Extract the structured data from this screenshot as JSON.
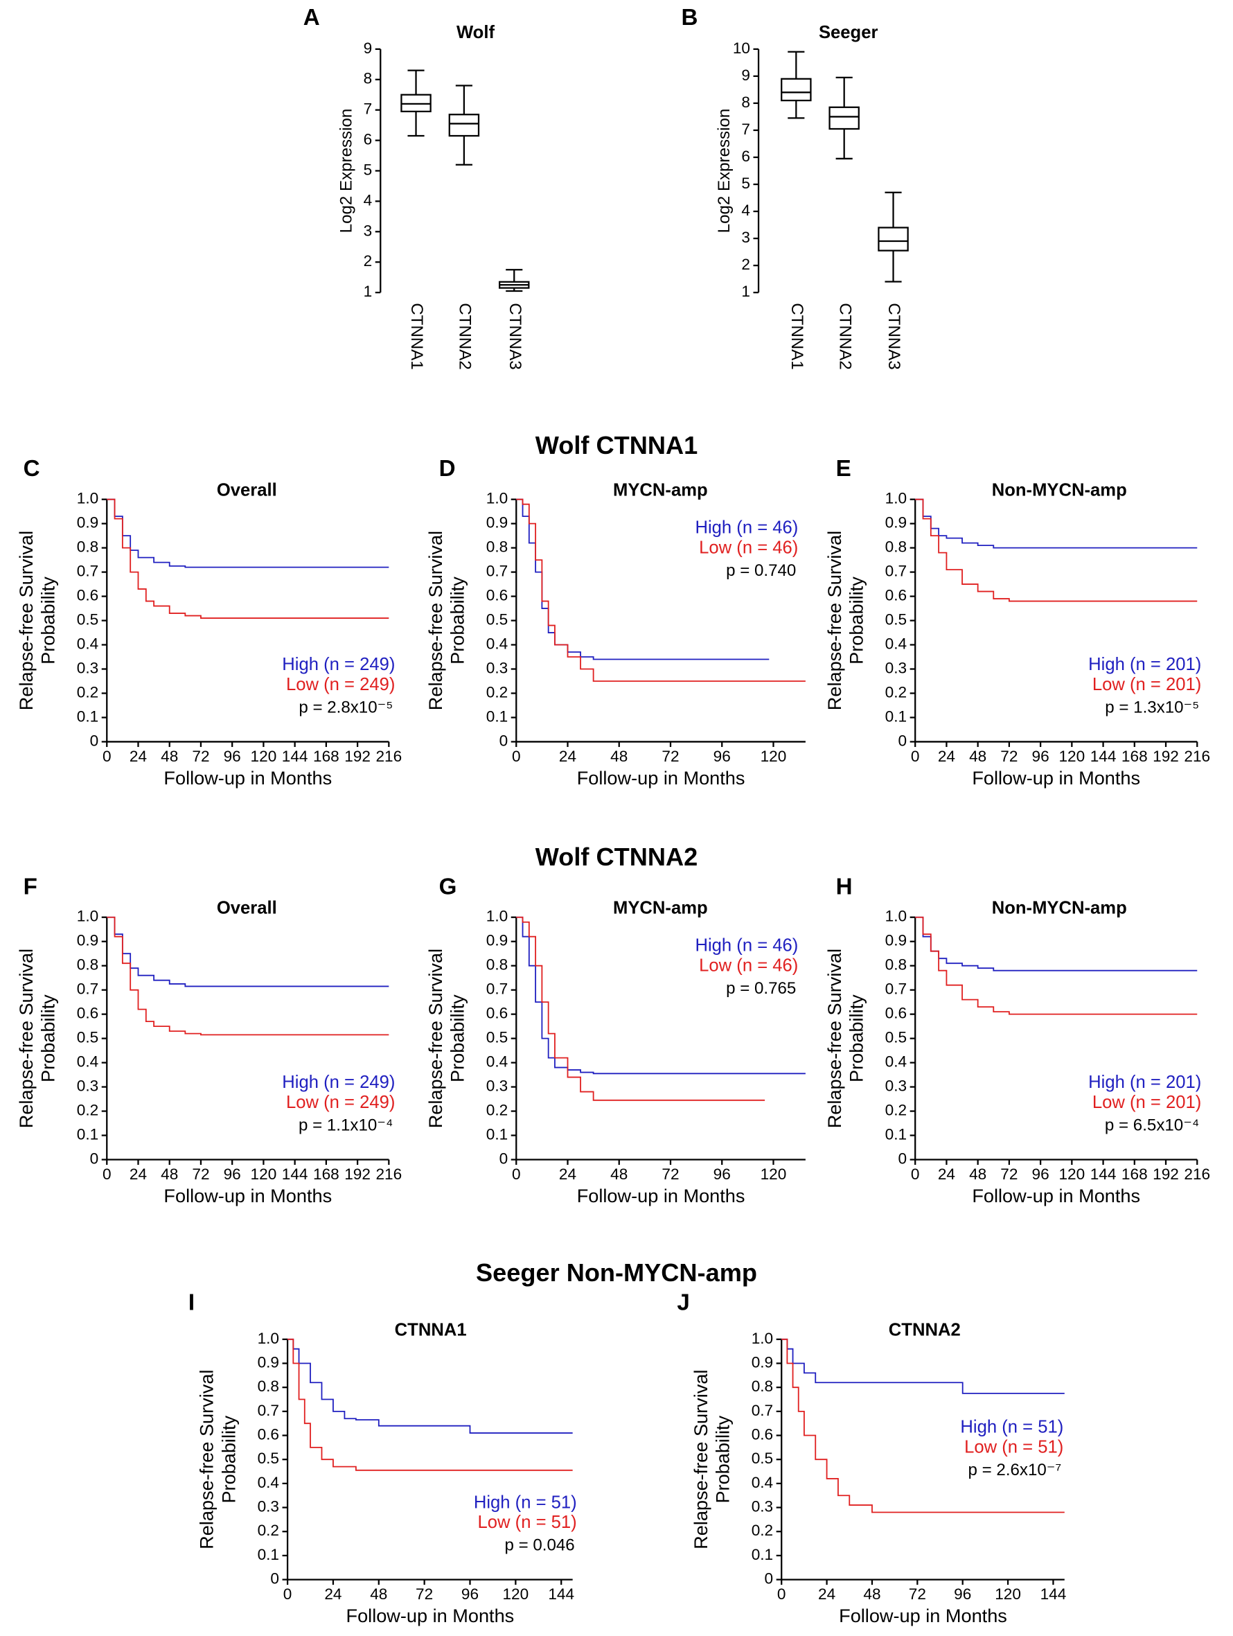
{
  "headings": [
    "Wolf CTNNA1",
    "Wolf CTNNA2",
    "Seeger Non-MYCN-amp"
  ],
  "chart_data": [
    {
      "type": "box",
      "panel": "A",
      "title": "Wolf",
      "ylabel": "Log2 Expression",
      "categories": [
        "CTNNA1",
        "CTNNA2",
        "CTNNA3"
      ],
      "min": [
        6.15,
        5.2,
        1.05
      ],
      "q1": [
        6.95,
        6.15,
        1.15
      ],
      "median": [
        7.2,
        6.55,
        1.25
      ],
      "q3": [
        7.5,
        6.85,
        1.35
      ],
      "max": [
        8.3,
        7.8,
        1.75
      ],
      "ylim": [
        1,
        9
      ],
      "yticks": [
        1,
        2,
        3,
        4,
        5,
        6,
        7,
        8,
        9
      ],
      "color": "#000000"
    },
    {
      "type": "box",
      "panel": "B",
      "title": "Seeger",
      "ylabel": "Log2 Expression",
      "categories": [
        "CTNNA1",
        "CTNNA2",
        "CTNNA3"
      ],
      "min": [
        7.45,
        5.95,
        1.4
      ],
      "q1": [
        8.1,
        7.05,
        2.55
      ],
      "median": [
        8.4,
        7.5,
        2.9
      ],
      "q3": [
        8.9,
        7.85,
        3.4
      ],
      "max": [
        9.9,
        8.95,
        4.7
      ],
      "ylim": [
        1,
        10
      ],
      "yticks": [
        1,
        2,
        3,
        4,
        5,
        6,
        7,
        8,
        9,
        10
      ],
      "color": "#000000"
    },
    {
      "type": "step",
      "panel": "C",
      "title": "Overall",
      "xlabel": "Follow-up in Months",
      "ylabel": [
        "Relapse-free Survival",
        "Probability"
      ],
      "annotation": "p = 2.8x10⁻⁵",
      "legend": "lower right",
      "xlim": [
        0,
        216
      ],
      "xticks": [
        0,
        24,
        48,
        72,
        96,
        120,
        144,
        168,
        192,
        216
      ],
      "ylim": [
        0,
        1
      ],
      "yticks": [
        0,
        0.1,
        0.2,
        0.3,
        0.4,
        0.5,
        0.6,
        0.7,
        0.8,
        0.9,
        {
          "value": 1,
          "label": "1.0"
        }
      ],
      "series": [
        {
          "name": "High (n = 249)",
          "color": "#2020c0",
          "x": [
            0,
            6,
            12,
            18,
            24,
            36,
            48,
            60,
            216
          ],
          "values": [
            1,
            0.93,
            0.85,
            0.79,
            0.76,
            0.74,
            0.725,
            0.72,
            0.72
          ]
        },
        {
          "name": "Low (n = 249)",
          "color": "#e02020",
          "x": [
            0,
            6,
            12,
            18,
            24,
            30,
            36,
            48,
            60,
            72,
            216
          ],
          "values": [
            1,
            0.92,
            0.8,
            0.7,
            0.63,
            0.58,
            0.56,
            0.53,
            0.52,
            0.51,
            0.51
          ]
        }
      ]
    },
    {
      "type": "step",
      "panel": "D",
      "title": "MYCN-amp",
      "xlabel": "Follow-up in Months",
      "ylabel": [
        "Relapse-free Survival",
        "Probability"
      ],
      "annotation": "p = 0.740",
      "legend": "upper right",
      "xlim": [
        0,
        135
      ],
      "xticks": [
        0,
        24,
        48,
        72,
        96,
        120
      ],
      "ylim": [
        0,
        1
      ],
      "yticks": [
        0,
        0.1,
        0.2,
        0.3,
        0.4,
        0.5,
        0.6,
        0.7,
        0.8,
        0.9,
        {
          "value": 1,
          "label": "1.0"
        }
      ],
      "series": [
        {
          "name": "High (n = 46)",
          "color": "#2020c0",
          "x": [
            0,
            3,
            6,
            9,
            12,
            15,
            18,
            24,
            30,
            36,
            118
          ],
          "values": [
            1,
            0.93,
            0.82,
            0.7,
            0.55,
            0.45,
            0.4,
            0.37,
            0.35,
            0.34,
            0.34
          ]
        },
        {
          "name": "Low (n = 46)",
          "color": "#e02020",
          "x": [
            0,
            3,
            6,
            9,
            12,
            15,
            18,
            24,
            30,
            36,
            135
          ],
          "values": [
            1,
            0.98,
            0.9,
            0.75,
            0.58,
            0.48,
            0.4,
            0.35,
            0.3,
            0.25,
            0.25
          ]
        }
      ]
    },
    {
      "type": "step",
      "panel": "E",
      "title": "Non-MYCN-amp",
      "xlabel": "Follow-up in Months",
      "ylabel": [
        "Relapse-free Survival",
        "Probability"
      ],
      "annotation": "p = 1.3x10⁻⁵",
      "legend": "lower right",
      "xlim": [
        0,
        216
      ],
      "xticks": [
        0,
        24,
        48,
        72,
        96,
        120,
        144,
        168,
        192,
        216
      ],
      "ylim": [
        0,
        1
      ],
      "yticks": [
        0,
        0.1,
        0.2,
        0.3,
        0.4,
        0.5,
        0.6,
        0.7,
        0.8,
        0.9,
        {
          "value": 1,
          "label": "1.0"
        }
      ],
      "series": [
        {
          "name": "High (n = 201)",
          "color": "#2020c0",
          "x": [
            0,
            6,
            12,
            18,
            24,
            36,
            48,
            60,
            216
          ],
          "values": [
            1,
            0.93,
            0.88,
            0.85,
            0.84,
            0.82,
            0.81,
            0.8,
            0.8
          ]
        },
        {
          "name": "Low (n = 201)",
          "color": "#e02020",
          "x": [
            0,
            6,
            12,
            18,
            24,
            36,
            48,
            60,
            72,
            216
          ],
          "values": [
            1,
            0.92,
            0.85,
            0.78,
            0.71,
            0.65,
            0.62,
            0.59,
            0.58,
            0.58
          ]
        }
      ]
    },
    {
      "type": "step",
      "panel": "F",
      "title": "Overall",
      "xlabel": "Follow-up in Months",
      "ylabel": [
        "Relapse-free Survival",
        "Probability"
      ],
      "annotation": "p = 1.1x10⁻⁴",
      "legend": "lower right",
      "xlim": [
        0,
        216
      ],
      "xticks": [
        0,
        24,
        48,
        72,
        96,
        120,
        144,
        168,
        192,
        216
      ],
      "ylim": [
        0,
        1
      ],
      "yticks": [
        0,
        0.1,
        0.2,
        0.3,
        0.4,
        0.5,
        0.6,
        0.7,
        0.8,
        0.9,
        {
          "value": 1,
          "label": "1.0"
        }
      ],
      "series": [
        {
          "name": "High (n = 249)",
          "color": "#2020c0",
          "x": [
            0,
            6,
            12,
            18,
            24,
            36,
            48,
            60,
            216
          ],
          "values": [
            1,
            0.93,
            0.85,
            0.79,
            0.76,
            0.74,
            0.725,
            0.715,
            0.715
          ]
        },
        {
          "name": "Low (n = 249)",
          "color": "#e02020",
          "x": [
            0,
            6,
            12,
            18,
            24,
            30,
            36,
            48,
            60,
            72,
            216
          ],
          "values": [
            1,
            0.92,
            0.81,
            0.7,
            0.62,
            0.57,
            0.55,
            0.53,
            0.52,
            0.515,
            0.515
          ]
        }
      ]
    },
    {
      "type": "step",
      "panel": "G",
      "title": "MYCN-amp",
      "xlabel": "Follow-up in Months",
      "ylabel": [
        "Relapse-free Survival",
        "Probability"
      ],
      "annotation": "p = 0.765",
      "legend": "upper right",
      "xlim": [
        0,
        135
      ],
      "xticks": [
        0,
        24,
        48,
        72,
        96,
        120
      ],
      "ylim": [
        0,
        1
      ],
      "yticks": [
        0,
        0.1,
        0.2,
        0.3,
        0.4,
        0.5,
        0.6,
        0.7,
        0.8,
        0.9,
        {
          "value": 1,
          "label": "1.0"
        }
      ],
      "series": [
        {
          "name": "High (n = 46)",
          "color": "#2020c0",
          "x": [
            0,
            3,
            6,
            9,
            12,
            15,
            18,
            24,
            30,
            36,
            135
          ],
          "values": [
            1,
            0.92,
            0.8,
            0.65,
            0.5,
            0.42,
            0.38,
            0.37,
            0.36,
            0.355,
            0.355
          ]
        },
        {
          "name": "Low (n = 46)",
          "color": "#e02020",
          "x": [
            0,
            3,
            6,
            9,
            12,
            15,
            18,
            24,
            30,
            36,
            116
          ],
          "values": [
            1,
            0.98,
            0.92,
            0.8,
            0.65,
            0.52,
            0.42,
            0.34,
            0.28,
            0.245,
            0.245
          ]
        }
      ]
    },
    {
      "type": "step",
      "panel": "H",
      "title": "Non-MYCN-amp",
      "xlabel": "Follow-up in Months",
      "ylabel": [
        "Relapse-free Survival",
        "Probability"
      ],
      "annotation": "p = 6.5x10⁻⁴",
      "legend": "lower right",
      "xlim": [
        0,
        216
      ],
      "xticks": [
        0,
        24,
        48,
        72,
        96,
        120,
        144,
        168,
        192,
        216
      ],
      "ylim": [
        0,
        1
      ],
      "yticks": [
        0,
        0.1,
        0.2,
        0.3,
        0.4,
        0.5,
        0.6,
        0.7,
        0.8,
        0.9,
        {
          "value": 1,
          "label": "1.0"
        }
      ],
      "series": [
        {
          "name": "High (n = 201)",
          "color": "#2020c0",
          "x": [
            0,
            6,
            12,
            18,
            24,
            36,
            48,
            60,
            216
          ],
          "values": [
            1,
            0.92,
            0.86,
            0.83,
            0.81,
            0.8,
            0.79,
            0.78,
            0.78
          ]
        },
        {
          "name": "Low (n = 201)",
          "color": "#e02020",
          "x": [
            0,
            6,
            12,
            18,
            24,
            36,
            48,
            60,
            72,
            216
          ],
          "values": [
            1,
            0.93,
            0.86,
            0.78,
            0.72,
            0.66,
            0.63,
            0.61,
            0.6,
            0.6
          ]
        }
      ]
    },
    {
      "type": "step",
      "panel": "I",
      "title": "CTNNA1",
      "xlabel": "Follow-up in Months",
      "ylabel": [
        "Relapse-free Survival",
        "Probability"
      ],
      "annotation": "p = 0.046",
      "legend": "lower right",
      "xlim": [
        0,
        150
      ],
      "xticks": [
        0,
        24,
        48,
        72,
        96,
        120,
        144
      ],
      "ylim": [
        0,
        1
      ],
      "yticks": [
        0,
        0.1,
        0.2,
        0.3,
        0.4,
        0.5,
        0.6,
        0.7,
        0.8,
        0.9,
        {
          "value": 1,
          "label": "1.0"
        }
      ],
      "series": [
        {
          "name": "High (n = 51)",
          "color": "#2020c0",
          "x": [
            0,
            3,
            6,
            12,
            18,
            24,
            30,
            36,
            48,
            96,
            150
          ],
          "values": [
            1,
            0.96,
            0.9,
            0.82,
            0.75,
            0.7,
            0.67,
            0.665,
            0.64,
            0.61,
            0.61
          ]
        },
        {
          "name": "Low (n = 51)",
          "color": "#e02020",
          "x": [
            0,
            3,
            6,
            9,
            12,
            18,
            24,
            36,
            150
          ],
          "values": [
            1,
            0.9,
            0.75,
            0.65,
            0.55,
            0.5,
            0.47,
            0.455,
            0.455
          ]
        }
      ]
    },
    {
      "type": "step",
      "panel": "J",
      "title": "CTNNA2",
      "xlabel": "Follow-up in Months",
      "ylabel": [
        "Relapse-free Survival",
        "Probability"
      ],
      "annotation": "p = 2.6x10⁻⁷",
      "legend": "center right",
      "xlim": [
        0,
        150
      ],
      "xticks": [
        0,
        24,
        48,
        72,
        96,
        120,
        144
      ],
      "ylim": [
        0,
        1
      ],
      "yticks": [
        0,
        0.1,
        0.2,
        0.3,
        0.4,
        0.5,
        0.6,
        0.7,
        0.8,
        0.9,
        {
          "value": 1,
          "label": "1.0"
        }
      ],
      "series": [
        {
          "name": "High (n = 51)",
          "color": "#2020c0",
          "x": [
            0,
            3,
            6,
            12,
            18,
            36,
            90,
            96,
            150
          ],
          "values": [
            1,
            0.96,
            0.9,
            0.86,
            0.82,
            0.82,
            0.82,
            0.775,
            0.775
          ]
        },
        {
          "name": "Low (n = 51)",
          "color": "#e02020",
          "x": [
            0,
            3,
            6,
            9,
            12,
            18,
            24,
            30,
            36,
            48,
            150
          ],
          "values": [
            1,
            0.9,
            0.8,
            0.7,
            0.6,
            0.5,
            0.42,
            0.35,
            0.31,
            0.28,
            0.28
          ]
        }
      ]
    }
  ]
}
